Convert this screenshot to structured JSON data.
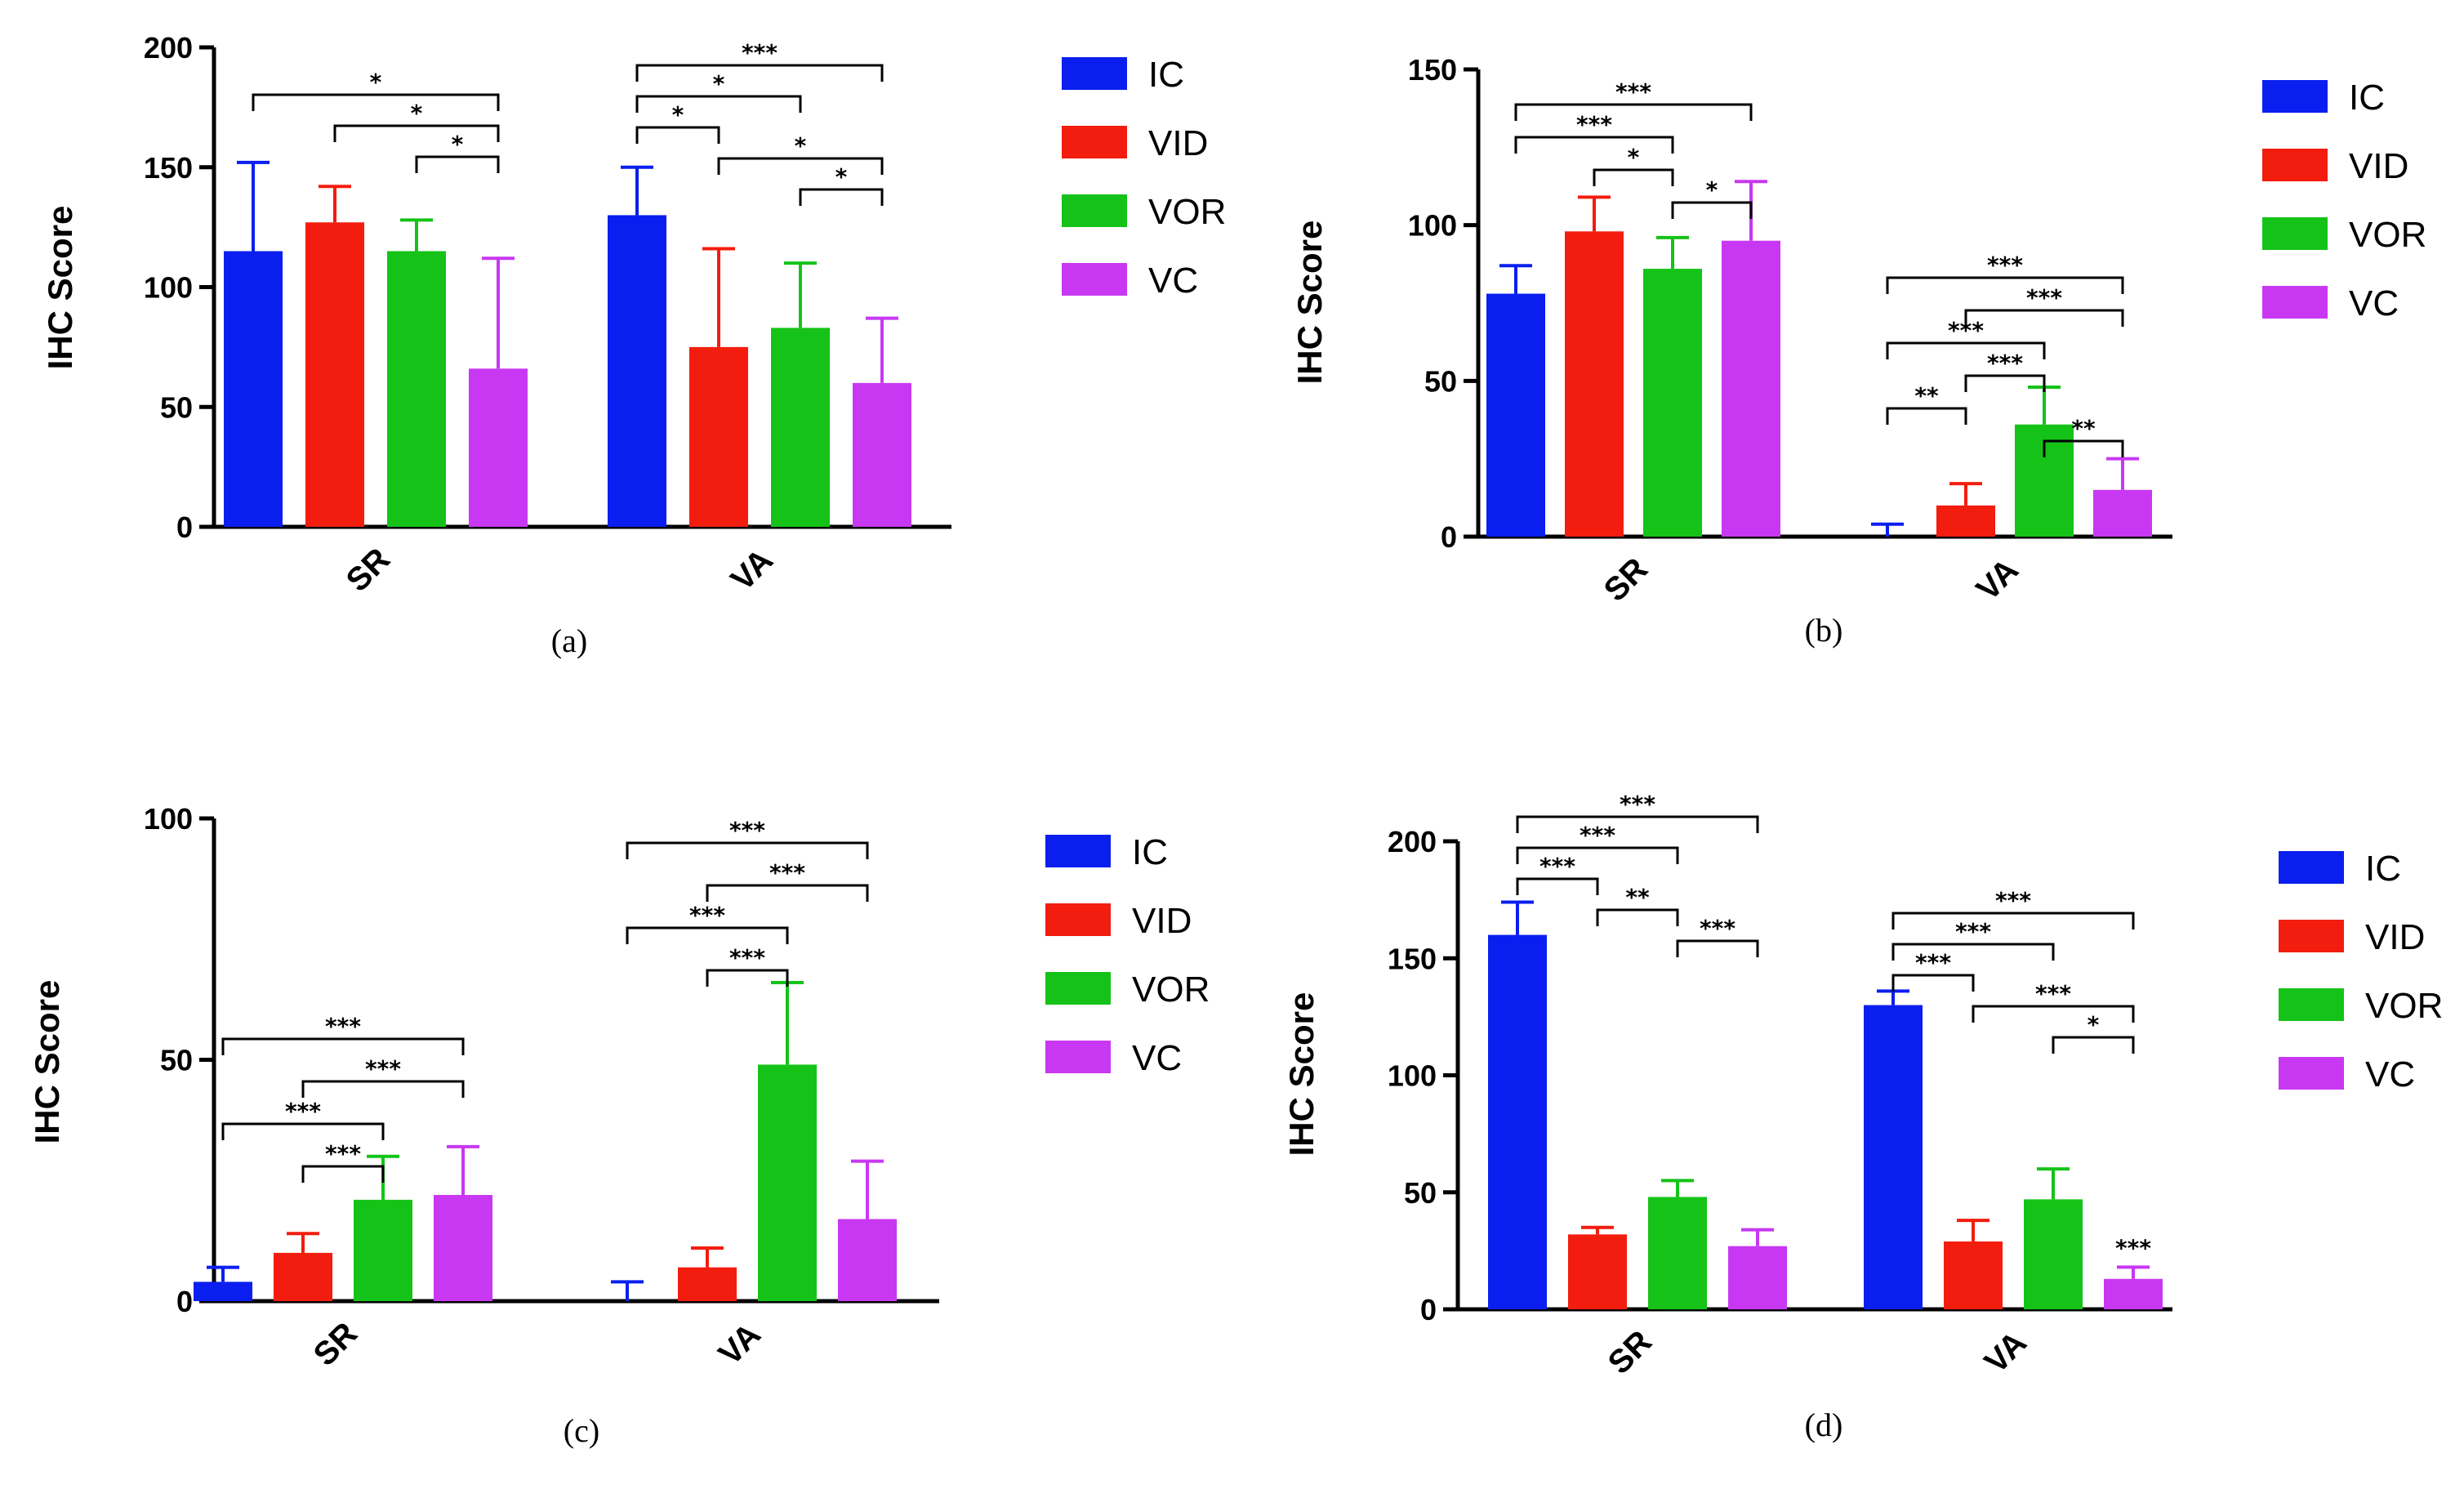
{
  "colors": {
    "IC": "#0a1fef",
    "VID": "#f21d0e",
    "VOR": "#15c318",
    "VC": "#c838f2"
  },
  "legend": [
    "IC",
    "VID",
    "VOR",
    "VC"
  ],
  "y_axis_title": "IHC  Score",
  "chart_data": [
    {
      "panel": "(a)",
      "type": "bar",
      "categories": [
        "SR",
        "VA"
      ],
      "ylim": [
        0,
        200
      ],
      "yticks": [
        0,
        50,
        100,
        150,
        200
      ],
      "ylabel": "IHC  Score",
      "series": [
        {
          "name": "IC",
          "values": [
            115,
            130
          ],
          "errors": [
            37,
            20
          ]
        },
        {
          "name": "VID",
          "values": [
            127,
            75
          ],
          "errors": [
            15,
            41
          ]
        },
        {
          "name": "VOR",
          "values": [
            115,
            83
          ],
          "errors": [
            13,
            27
          ]
        },
        {
          "name": "VC",
          "values": [
            66,
            60
          ],
          "errors": [
            46,
            27
          ]
        }
      ],
      "significance": [
        {
          "cat": 0,
          "a": 0,
          "b": 3,
          "label": "*"
        },
        {
          "cat": 0,
          "a": 1,
          "b": 3,
          "label": "*"
        },
        {
          "cat": 0,
          "a": 2,
          "b": 3,
          "label": "*"
        },
        {
          "cat": 1,
          "a": 0,
          "b": 3,
          "label": "***"
        },
        {
          "cat": 1,
          "a": 0,
          "b": 2,
          "label": "*"
        },
        {
          "cat": 1,
          "a": 0,
          "b": 1,
          "label": "*"
        },
        {
          "cat": 1,
          "a": 1,
          "b": 3,
          "label": "*"
        },
        {
          "cat": 1,
          "a": 2,
          "b": 3,
          "label": "*"
        }
      ]
    },
    {
      "panel": "(b)",
      "type": "bar",
      "categories": [
        "SR",
        "VA"
      ],
      "ylim": [
        0,
        150
      ],
      "yticks": [
        0,
        50,
        100,
        150
      ],
      "ylabel": "IHC Score",
      "series": [
        {
          "name": "IC",
          "values": [
            78,
            0
          ],
          "errors": [
            9,
            4
          ]
        },
        {
          "name": "VID",
          "values": [
            98,
            10
          ],
          "errors": [
            11,
            7
          ]
        },
        {
          "name": "VOR",
          "values": [
            86,
            36
          ],
          "errors": [
            10,
            12
          ]
        },
        {
          "name": "VC",
          "values": [
            95,
            15
          ],
          "errors": [
            19,
            10
          ]
        }
      ],
      "significance": [
        {
          "cat": 0,
          "a": 0,
          "b": 3,
          "label": "***"
        },
        {
          "cat": 0,
          "a": 0,
          "b": 2,
          "label": "***"
        },
        {
          "cat": 0,
          "a": 1,
          "b": 2,
          "label": "*"
        },
        {
          "cat": 0,
          "a": 2,
          "b": 3,
          "label": "*"
        },
        {
          "cat": 1,
          "a": 0,
          "b": 3,
          "label": "***"
        },
        {
          "cat": 1,
          "a": 1,
          "b": 3,
          "label": "***"
        },
        {
          "cat": 1,
          "a": 0,
          "b": 2,
          "label": "***"
        },
        {
          "cat": 1,
          "a": 1,
          "b": 2,
          "label": "***"
        },
        {
          "cat": 1,
          "a": 0,
          "b": 1,
          "label": "**"
        },
        {
          "cat": 1,
          "a": 2,
          "b": 3,
          "label": "**"
        }
      ]
    },
    {
      "panel": "(c)",
      "type": "bar",
      "categories": [
        "SR",
        "VA"
      ],
      "ylim": [
        0,
        100
      ],
      "yticks": [
        0,
        50,
        100
      ],
      "ylabel": "IHC  Score",
      "series": [
        {
          "name": "IC",
          "values": [
            4,
            0
          ],
          "errors": [
            3,
            4
          ]
        },
        {
          "name": "VID",
          "values": [
            10,
            7
          ],
          "errors": [
            4,
            4
          ]
        },
        {
          "name": "VOR",
          "values": [
            21,
            49
          ],
          "errors": [
            9,
            17
          ]
        },
        {
          "name": "VC",
          "values": [
            22,
            17
          ],
          "errors": [
            10,
            12
          ]
        }
      ],
      "significance": [
        {
          "cat": 0,
          "a": 0,
          "b": 3,
          "label": "***"
        },
        {
          "cat": 0,
          "a": 1,
          "b": 3,
          "label": "***"
        },
        {
          "cat": 0,
          "a": 0,
          "b": 2,
          "label": "***"
        },
        {
          "cat": 0,
          "a": 1,
          "b": 2,
          "label": "***"
        },
        {
          "cat": 1,
          "a": 0,
          "b": 3,
          "label": "***"
        },
        {
          "cat": 1,
          "a": 1,
          "b": 3,
          "label": "***"
        },
        {
          "cat": 1,
          "a": 0,
          "b": 2,
          "label": "***"
        },
        {
          "cat": 1,
          "a": 1,
          "b": 2,
          "label": "***"
        }
      ]
    },
    {
      "panel": "(d)",
      "type": "bar",
      "categories": [
        "SR",
        "VA"
      ],
      "ylim": [
        0,
        200
      ],
      "yticks": [
        0,
        50,
        100,
        150,
        200
      ],
      "ylabel": "IHC  Score",
      "series": [
        {
          "name": "IC",
          "values": [
            160,
            130
          ],
          "errors": [
            14,
            6
          ]
        },
        {
          "name": "VID",
          "values": [
            32,
            29
          ],
          "errors": [
            3,
            9
          ]
        },
        {
          "name": "VOR",
          "values": [
            48,
            47
          ],
          "errors": [
            7,
            13
          ]
        },
        {
          "name": "VC",
          "values": [
            27,
            13
          ],
          "errors": [
            7,
            5
          ]
        }
      ],
      "significance": [
        {
          "cat": 0,
          "a": 0,
          "b": 3,
          "label": "***"
        },
        {
          "cat": 0,
          "a": 0,
          "b": 2,
          "label": "***"
        },
        {
          "cat": 0,
          "a": 0,
          "b": 1,
          "label": "***"
        },
        {
          "cat": 0,
          "a": 1,
          "b": 2,
          "label": "**"
        },
        {
          "cat": 0,
          "a": 2,
          "b": 3,
          "label": "***"
        },
        {
          "cat": 1,
          "a": 0,
          "b": 3,
          "label": "***"
        },
        {
          "cat": 1,
          "a": 0,
          "b": 2,
          "label": "***"
        },
        {
          "cat": 1,
          "a": 0,
          "b": 1,
          "label": "***"
        },
        {
          "cat": 1,
          "a": 1,
          "b": 3,
          "label": "***"
        },
        {
          "cat": 1,
          "a": 2,
          "b": 3,
          "label": "*"
        },
        {
          "cat": 1,
          "a": 3,
          "b": 3,
          "label": "***"
        }
      ]
    }
  ]
}
